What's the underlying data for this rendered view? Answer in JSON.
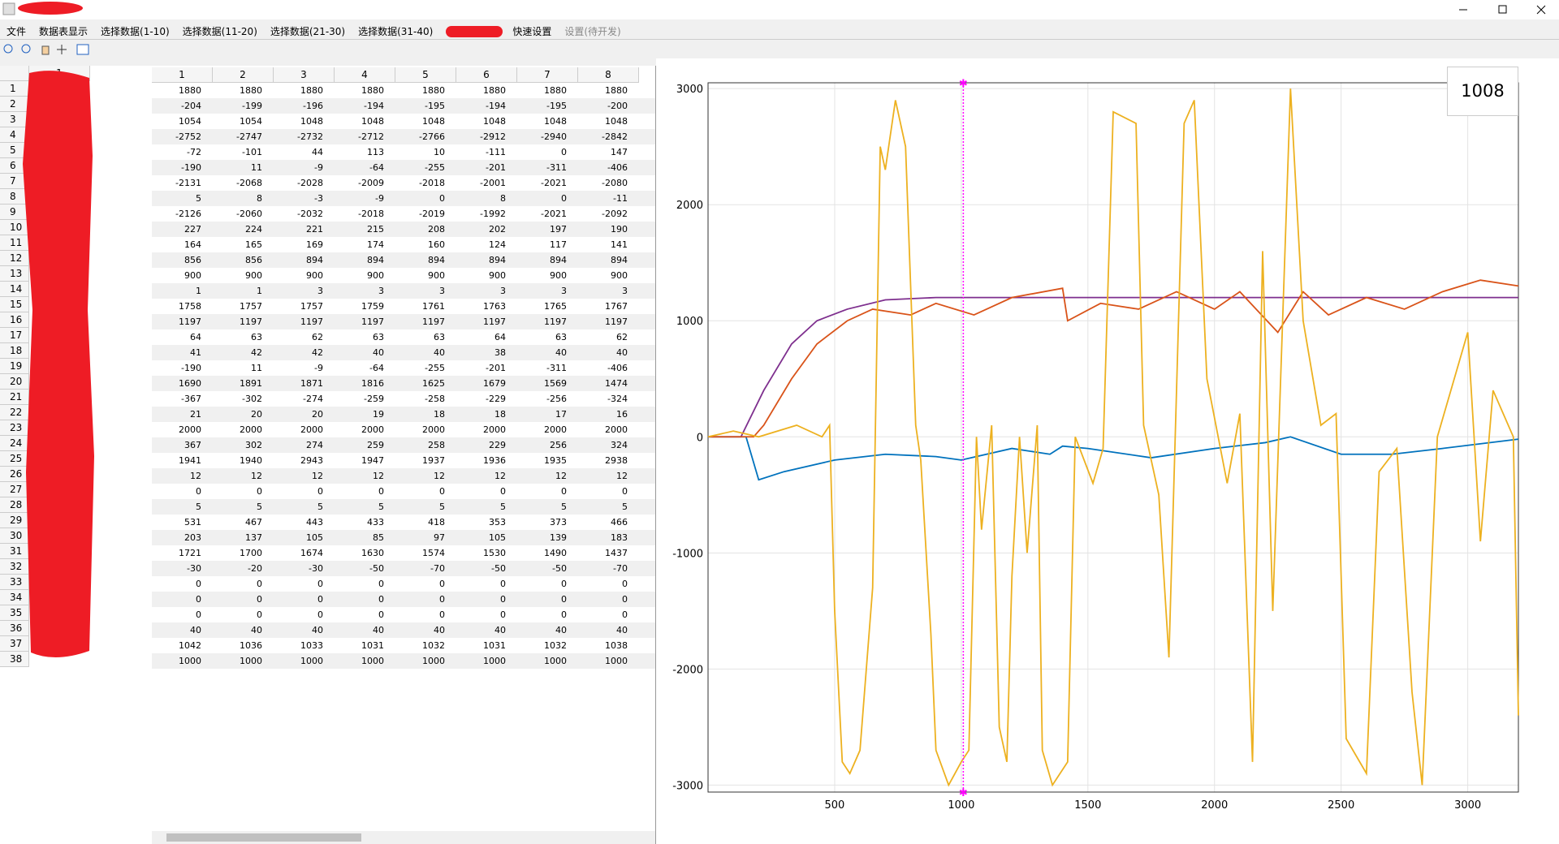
{
  "menu": [
    "文件",
    "数据表显示",
    "选择数据(1-10)",
    "选择数据(11-20)",
    "选择数据(21-30)",
    "选择数据(31-40)",
    "快速设置",
    "设置(待开发)"
  ],
  "left_table": {
    "header": "1"
  },
  "table": {
    "columns": [
      1,
      2,
      3,
      4,
      5,
      6,
      7,
      8
    ],
    "row_headers": [
      1,
      2,
      3,
      4,
      5,
      6,
      7,
      8,
      9,
      10,
      11,
      12,
      13,
      14,
      15,
      16,
      17,
      18,
      19,
      20,
      21,
      22,
      23,
      24,
      25,
      26,
      27,
      28,
      29,
      30,
      31,
      32,
      33,
      34,
      35,
      36,
      37,
      38
    ],
    "rows": [
      [
        1880,
        1880,
        1880,
        1880,
        1880,
        1880,
        1880,
        1880
      ],
      [
        -204,
        -199,
        -196,
        -194,
        -195,
        -194,
        -195,
        -200
      ],
      [
        1054,
        1054,
        1048,
        1048,
        1048,
        1048,
        1048,
        1048
      ],
      [
        -2752,
        -2747,
        -2732,
        -2712,
        -2766,
        -2912,
        -2940,
        -2842
      ],
      [
        -72,
        -101,
        44,
        113,
        10,
        -111,
        0,
        147
      ],
      [
        -190,
        11,
        -9,
        -64,
        -255,
        -201,
        -311,
        -406
      ],
      [
        -2131,
        -2068,
        -2028,
        -2009,
        -2018,
        -2001,
        -2021,
        -2080
      ],
      [
        5,
        8,
        -3,
        -9,
        0,
        8,
        0,
        -11
      ],
      [
        -2126,
        -2060,
        -2032,
        -2018,
        -2019,
        -1992,
        -2021,
        -2092
      ],
      [
        227,
        224,
        221,
        215,
        208,
        202,
        197,
        190
      ],
      [
        164,
        165,
        169,
        174,
        160,
        124,
        117,
        141
      ],
      [
        856,
        856,
        894,
        894,
        894,
        894,
        894,
        894
      ],
      [
        900,
        900,
        900,
        900,
        900,
        900,
        900,
        900
      ],
      [
        1,
        1,
        3,
        3,
        3,
        3,
        3,
        3
      ],
      [
        1758,
        1757,
        1757,
        1759,
        1761,
        1763,
        1765,
        1767
      ],
      [
        1197,
        1197,
        1197,
        1197,
        1197,
        1197,
        1197,
        1197
      ],
      [
        64,
        63,
        62,
        63,
        63,
        64,
        63,
        62
      ],
      [
        41,
        42,
        42,
        40,
        40,
        38,
        40,
        40
      ],
      [
        -190,
        11,
        -9,
        -64,
        -255,
        -201,
        -311,
        -406
      ],
      [
        1690,
        1891,
        1871,
        1816,
        1625,
        1679,
        1569,
        1474
      ],
      [
        -367,
        -302,
        -274,
        -259,
        -258,
        -229,
        -256,
        -324
      ],
      [
        21,
        20,
        20,
        19,
        18,
        18,
        17,
        16
      ],
      [
        2000,
        2000,
        2000,
        2000,
        2000,
        2000,
        2000,
        2000
      ],
      [
        367,
        302,
        274,
        259,
        258,
        229,
        256,
        324
      ],
      [
        1941,
        1940,
        2943,
        1947,
        1937,
        1936,
        1935,
        2938
      ],
      [
        12,
        12,
        12,
        12,
        12,
        12,
        12,
        12
      ],
      [
        0,
        0,
        0,
        0,
        0,
        0,
        0,
        0
      ],
      [
        5,
        5,
        5,
        5,
        5,
        5,
        5,
        5
      ],
      [
        531,
        467,
        443,
        433,
        418,
        353,
        373,
        466
      ],
      [
        203,
        137,
        105,
        85,
        97,
        105,
        139,
        183
      ],
      [
        1721,
        1700,
        1674,
        1630,
        1574,
        1530,
        1490,
        1437
      ],
      [
        -30,
        -20,
        -30,
        -50,
        -70,
        -50,
        -50,
        -70
      ],
      [
        0,
        0,
        0,
        0,
        0,
        0,
        0,
        0
      ],
      [
        0,
        0,
        0,
        0,
        0,
        0,
        0,
        0
      ],
      [
        0,
        0,
        0,
        0,
        0,
        0,
        0,
        0
      ],
      [
        40,
        40,
        40,
        40,
        40,
        40,
        40,
        40
      ],
      [
        1042,
        1036,
        1033,
        1031,
        1032,
        1031,
        1032,
        1038
      ],
      [
        1000,
        1000,
        1000,
        1000,
        1000,
        1000,
        1000,
        1000
      ]
    ]
  },
  "chart_data": {
    "type": "line",
    "xlim": [
      0,
      3200
    ],
    "ylim": [
      -3060,
      3050
    ],
    "xticks": [
      500,
      1000,
      1500,
      2000,
      2500,
      3000
    ],
    "yticks": [
      -3000,
      -2000,
      -1000,
      0,
      1000,
      2000,
      3000
    ],
    "grid": true,
    "cursor_x": 1008,
    "cursor_color": "#ff00ff",
    "series": [
      {
        "color": "#0072bd",
        "x": [
          0,
          150,
          200,
          300,
          500,
          700,
          900,
          1000,
          1200,
          1350,
          1400,
          1500,
          1750,
          2000,
          2200,
          2300,
          2500,
          2700,
          2900,
          3200
        ],
        "values": [
          0,
          0,
          -370,
          -300,
          -200,
          -150,
          -170,
          -200,
          -100,
          -150,
          -80,
          -100,
          -180,
          -100,
          -50,
          0,
          -150,
          -150,
          -100,
          -20
        ]
      },
      {
        "color": "#7e2f8e",
        "x": [
          0,
          130,
          220,
          330,
          430,
          550,
          700,
          900,
          3200
        ],
        "values": [
          0,
          0,
          400,
          800,
          1000,
          1100,
          1180,
          1200,
          1200
        ]
      },
      {
        "color": "#d95319",
        "x": [
          0,
          180,
          220,
          330,
          430,
          550,
          650,
          800,
          900,
          1050,
          1200,
          1400,
          1420,
          1550,
          1700,
          1850,
          2000,
          2100,
          2250,
          2350,
          2450,
          2600,
          2750,
          2900,
          3050,
          3200
        ],
        "values": [
          0,
          0,
          100,
          500,
          800,
          1000,
          1100,
          1050,
          1150,
          1050,
          1200,
          1280,
          1000,
          1150,
          1100,
          1250,
          1100,
          1250,
          900,
          1250,
          1050,
          1200,
          1100,
          1250,
          1350,
          1300
        ]
      },
      {
        "color": "#edb120",
        "x": [
          0,
          100,
          200,
          350,
          450,
          480,
          500,
          530,
          560,
          600,
          650,
          680,
          700,
          740,
          780,
          820,
          840,
          880,
          900,
          950,
          1000,
          1030,
          1060,
          1080,
          1120,
          1150,
          1180,
          1200,
          1230,
          1260,
          1300,
          1320,
          1360,
          1420,
          1450,
          1520,
          1560,
          1600,
          1690,
          1720,
          1780,
          1820,
          1880,
          1920,
          1970,
          2050,
          2100,
          2150,
          2190,
          2230,
          2300,
          2350,
          2420,
          2480,
          2520,
          2600,
          2650,
          2720,
          2780,
          2820,
          2880,
          3000,
          3050,
          3100,
          3180,
          3200
        ],
        "values": [
          0,
          50,
          0,
          100,
          0,
          100,
          -1500,
          -2800,
          -2900,
          -2700,
          -1300,
          2500,
          2300,
          2900,
          2500,
          100,
          -200,
          -1700,
          -2700,
          -3000,
          -2800,
          -2700,
          0,
          -800,
          100,
          -2500,
          -2800,
          -1200,
          0,
          -1000,
          100,
          -2700,
          -3000,
          -2800,
          0,
          -400,
          -100,
          2800,
          2700,
          100,
          -500,
          -1900,
          2700,
          2900,
          500,
          -400,
          200,
          -2800,
          1600,
          -1500,
          3000,
          1000,
          100,
          200,
          -2600,
          -2900,
          -300,
          -100,
          -2200,
          -3000,
          0,
          900,
          -900,
          400,
          0,
          -2400
        ]
      }
    ]
  }
}
